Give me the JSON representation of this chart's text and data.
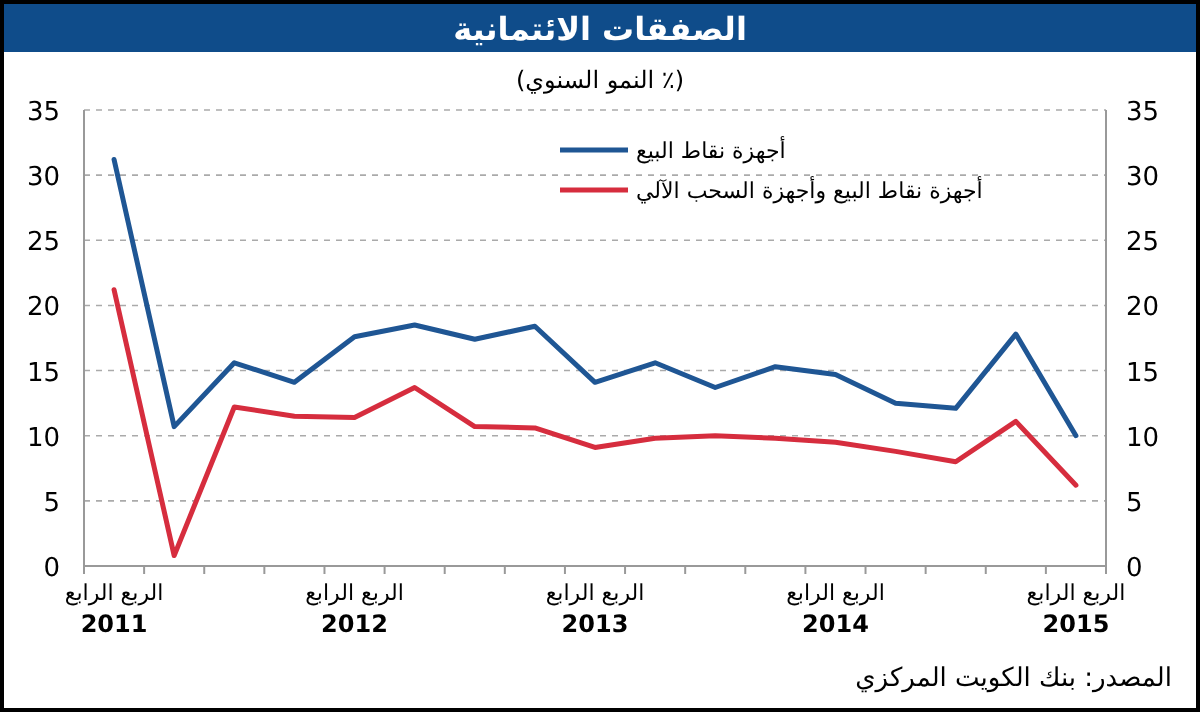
{
  "chart_data": {
    "type": "line",
    "title": "الصفقات الائتمانية",
    "subtitle": "(٪ النمو السنوي)",
    "categories": [
      "الربع الرابع 2011",
      null,
      null,
      null,
      "الربع الرابع 2012",
      null,
      null,
      null,
      "الربع الرابع 2013",
      null,
      null,
      null,
      "الربع الرابع 2014",
      null,
      null,
      null,
      "الربع الرابع 2015"
    ],
    "series": [
      {
        "name": "أجهزة نقاط البيع",
        "color": "#1f5694",
        "values": [
          31.2,
          10.7,
          15.6,
          14.1,
          17.6,
          18.5,
          17.4,
          18.4,
          14.1,
          15.6,
          13.7,
          15.3,
          14.7,
          12.5,
          12.1,
          17.8,
          10.0
        ]
      },
      {
        "name": "أجهزة نقاط البيع وأجهزة السحب الآلي",
        "color": "#d62d3e",
        "values": [
          21.2,
          0.8,
          12.2,
          11.5,
          11.4,
          13.7,
          10.7,
          10.6,
          9.1,
          9.8,
          10.0,
          9.8,
          9.5,
          8.8,
          8.0,
          11.1,
          6.2
        ]
      }
    ],
    "ylim": [
      0,
      35
    ],
    "yticks": [
      0,
      5,
      10,
      15,
      20,
      25,
      30,
      35
    ],
    "y2lim": [
      0,
      35
    ],
    "y2ticks": [
      0,
      5,
      10,
      15,
      20,
      25,
      30,
      35
    ],
    "grid": "y",
    "legend": "top",
    "marker": "none",
    "line_style": "solid",
    "annotations": [
      "المصدر: بنك الكويت المركزي"
    ]
  }
}
